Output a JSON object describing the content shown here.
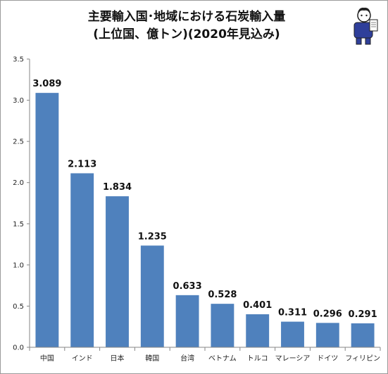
{
  "title": {
    "line1": "主要輸入国･地域における石炭輸入量",
    "line2": "(上位国、億トン)(2020年見込み)"
  },
  "colors": {
    "bar": "#4f81bd",
    "axis": "#868686",
    "grid": "#d9d9d9"
  },
  "chart_data": {
    "type": "bar",
    "categories": [
      "中国",
      "インド",
      "日本",
      "韓国",
      "台湾",
      "ベトナム",
      "トルコ",
      "マレーシア",
      "ドイツ",
      "フィリピン"
    ],
    "values": [
      3.089,
      2.113,
      1.834,
      1.235,
      0.633,
      0.528,
      0.401,
      0.311,
      0.296,
      0.291
    ],
    "data_labels": [
      "3.089",
      "2.113",
      "1.834",
      "1.235",
      "0.633",
      "0.528",
      "0.401",
      "0.311",
      "0.296",
      "0.291"
    ],
    "yticks": [
      "0.0",
      "0.5",
      "1.0",
      "1.5",
      "2.0",
      "2.5",
      "3.0",
      "3.5"
    ],
    "ylim": [
      0,
      3.5
    ],
    "grid": false,
    "legend": "none"
  }
}
